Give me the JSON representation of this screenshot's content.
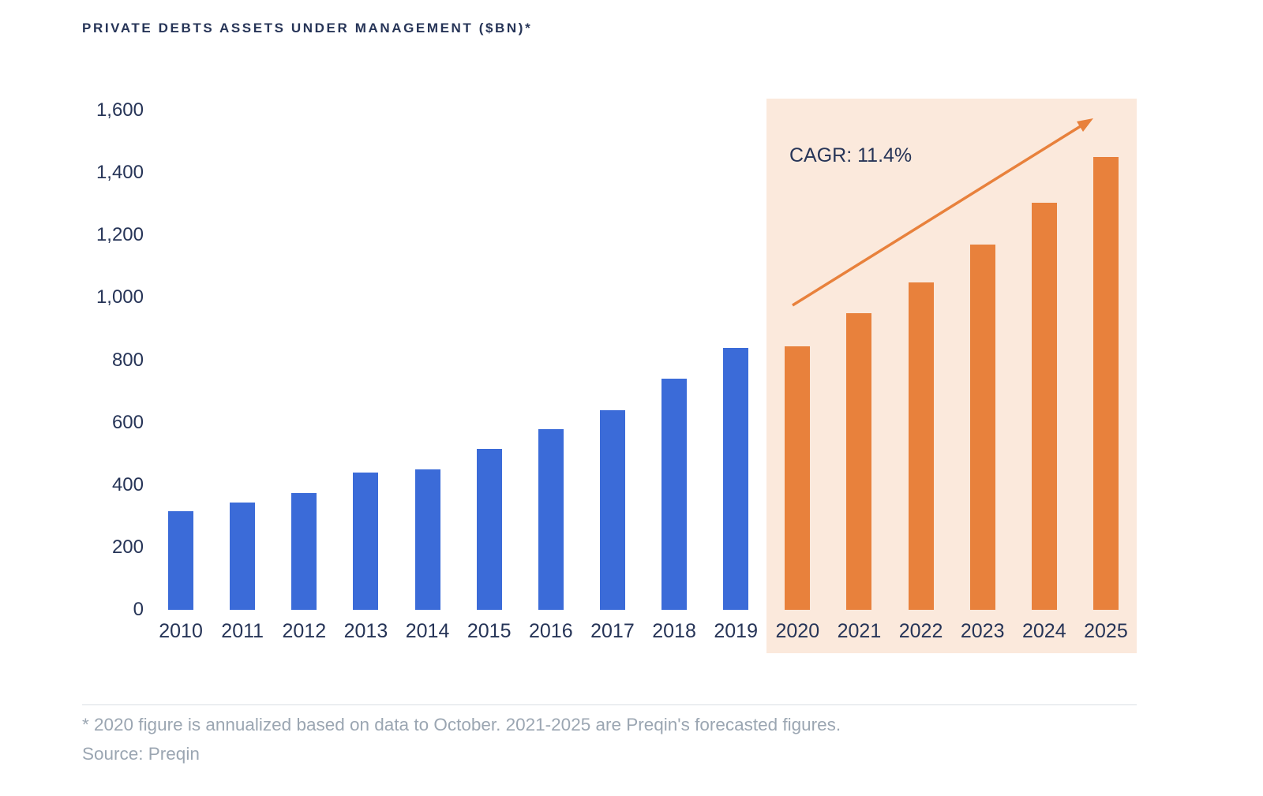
{
  "title": "PRIVATE DEBTS ASSETS UNDER MANAGEMENT ($BN)*",
  "chart_data": {
    "type": "bar",
    "title": "PRIVATE DEBTS ASSETS UNDER MANAGEMENT ($BN)*",
    "categories": [
      "2010",
      "2011",
      "2012",
      "2013",
      "2014",
      "2015",
      "2016",
      "2017",
      "2018",
      "2019",
      "2020",
      "2021",
      "2022",
      "2023",
      "2024",
      "2025"
    ],
    "values": [
      315,
      345,
      375,
      440,
      450,
      515,
      580,
      640,
      740,
      840,
      845,
      950,
      1050,
      1170,
      1305,
      1450
    ],
    "ylim": [
      0,
      1600
    ],
    "yticks": [
      0,
      200,
      400,
      600,
      800,
      1000,
      1200,
      1400,
      1600
    ],
    "ytick_labels": [
      "0",
      "200",
      "400",
      "600",
      "800",
      "1,000",
      "1,200",
      "1,400",
      "1,600"
    ],
    "annotation": "CAGR: 11.4%",
    "historical_color": "#3b6bd8",
    "forecast_color": "#e8813c",
    "forecast_background": "#fbe9dc",
    "forecast_start_index": 10,
    "grid": false,
    "legend": "none",
    "xlabel": "",
    "ylabel": ""
  },
  "footnote": "* 2020 figure is annualized based on data to October. 2021-2025 are Preqin's forecasted figures.",
  "source": "Source: Preqin"
}
